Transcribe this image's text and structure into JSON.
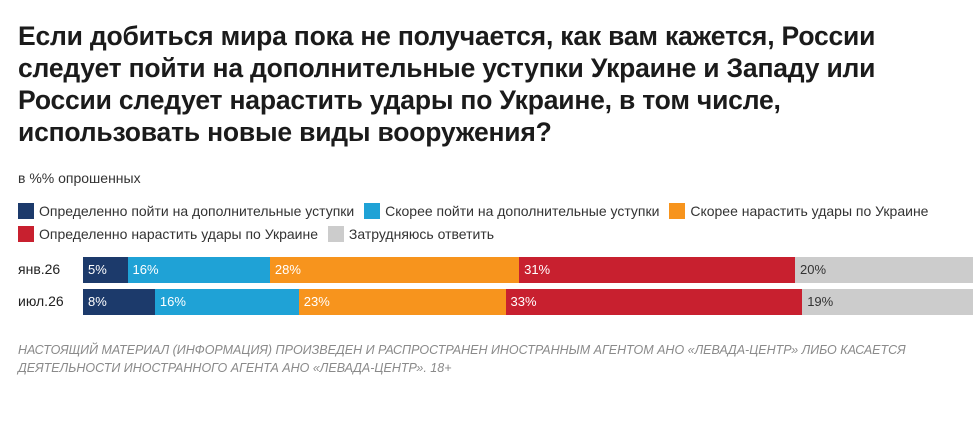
{
  "chart_data": {
    "type": "bar",
    "orientation": "horizontal-stacked",
    "title": "Если добиться мира пока не получается, как вам кажется, России следует пойти на дополнительные уступки Украине и Западу или России следует нарастить удары по Украине, в том числе, использовать новые виды вооружения?",
    "subtitle": "в %% опрошенных",
    "categories": [
      "янв.26",
      "июл.26"
    ],
    "series": [
      {
        "name": "Определенно пойти на дополнительные уступки",
        "color": "#1c3a6b",
        "text_color": "#ffffff",
        "values": [
          5,
          8
        ]
      },
      {
        "name": "Скорее пойти на дополнительные уступки",
        "color": "#1fa2d6",
        "text_color": "#ffffff",
        "values": [
          16,
          16
        ]
      },
      {
        "name": "Скорее нарастить удары по Украине",
        "color": "#f7941d",
        "text_color": "#ffffff",
        "values": [
          28,
          23
        ]
      },
      {
        "name": "Определенно нарастить удары по Украине",
        "color": "#c8202f",
        "text_color": "#ffffff",
        "values": [
          31,
          33
        ]
      },
      {
        "name": "Затрудняюсь ответить",
        "color": "#cccccc",
        "text_color": "#333333",
        "values": [
          20,
          19
        ]
      }
    ],
    "value_suffix": "%",
    "legend_position": "top"
  },
  "footer": "НАСТОЯЩИЙ МАТЕРИАЛ (ИНФОРМАЦИЯ) ПРОИЗВЕДЕН И РАСПРОСТРАНЕН ИНОСТРАННЫМ АГЕНТОМ АНО «ЛЕВАДА-ЦЕНТР» ЛИБО КАСАЕТСЯ ДЕЯТЕЛЬНОСТИ ИНОСТРАННОГО АГЕНТА АНО «ЛЕВАДА-ЦЕНТР». 18+"
}
